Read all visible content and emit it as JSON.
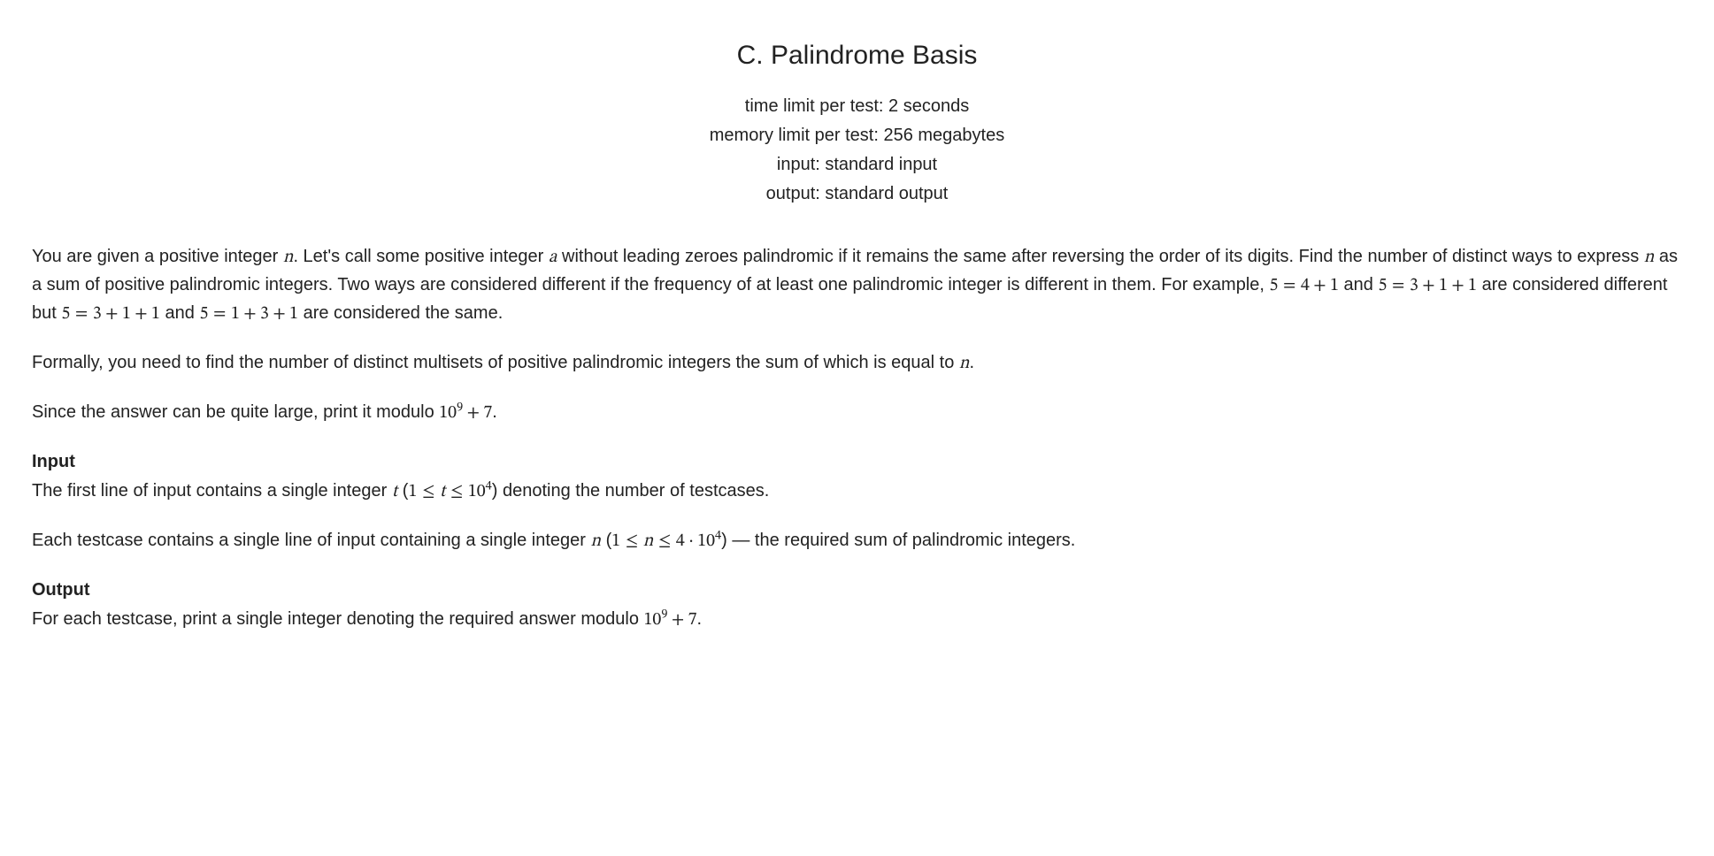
{
  "title": "C. Palindrome Basis",
  "meta": {
    "time_limit": "time limit per test: 2 seconds",
    "memory_limit": "memory limit per test: 256 megabytes",
    "input": "input: standard input",
    "output": "output: standard output"
  },
  "paragraphs": {
    "p1a": "You are given a positive integer ",
    "p1b": ". Let's call some positive integer ",
    "p1c": " without leading zeroes palindromic if it remains the same after reversing the order of its digits. Find the number of distinct ways to express ",
    "p1d": " as a sum of positive palindromic integers. Two ways are considered different if the frequency of at least one palindromic integer is different in them. For example, ",
    "p1e": " and ",
    "p1f": " are considered different but ",
    "p1g": " and ",
    "p1h": " are considered the same.",
    "p2a": "Formally, you need to find the number of distinct multisets of positive palindromic integers the sum of which is equal to ",
    "p2b": ".",
    "p3a": "Since the answer can be quite large, print it modulo ",
    "p3b": "."
  },
  "input_section": {
    "header": "Input",
    "line1a": "The first line of input contains a single integer ",
    "line1b": " (",
    "line1c": ") denoting the number of testcases.",
    "line2a": "Each testcase contains a single line of input containing a single integer ",
    "line2b": " (",
    "line2c": ") — the required sum of palindromic integers."
  },
  "output_section": {
    "header": "Output",
    "line1a": "For each testcase, print a single integer denoting the required answer modulo ",
    "line1b": "."
  },
  "math": {
    "n": "n",
    "a": "a",
    "t": "t",
    "five_eq_4_1_a": "5",
    "five_eq_4_1_b": "4",
    "five_eq_4_1_c": "1",
    "five_eq_3_1_1_a": "5",
    "five_eq_3_1_1_b": "3",
    "five_eq_3_1_1_c": "1",
    "five_eq_3_1_1_d": "1",
    "five_eq_1_3_1_a": "5",
    "five_eq_1_3_1_b": "1",
    "five_eq_1_3_1_c": "3",
    "five_eq_1_3_1_d": "1",
    "mod_base": "10",
    "mod_exp": "9",
    "mod_plus": "7",
    "t_low": "1",
    "t_high_base": "10",
    "t_high_exp": "4",
    "n_low": "1",
    "n_high_mult": "4",
    "n_high_base": "10",
    "n_high_exp": "4"
  }
}
